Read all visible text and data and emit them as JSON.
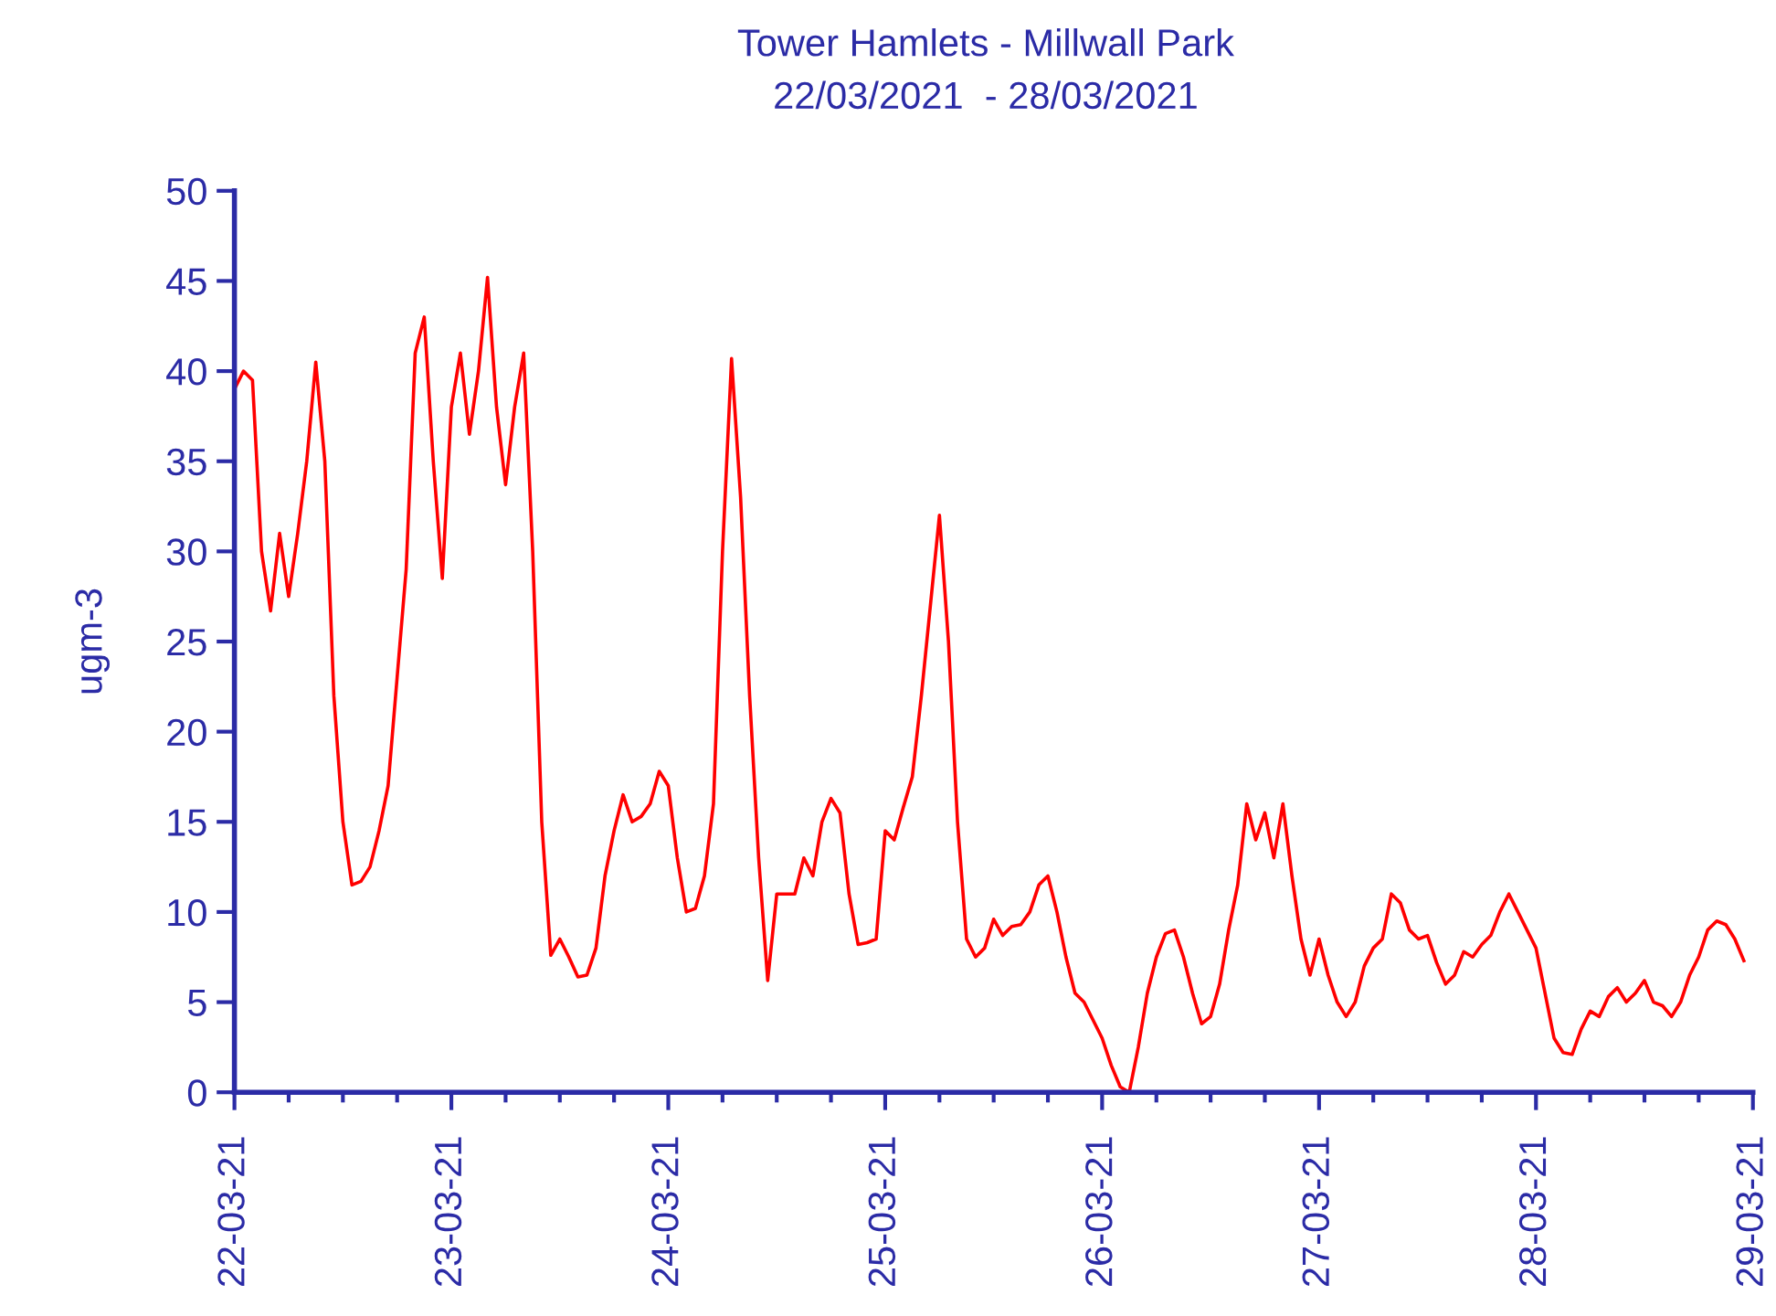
{
  "chart_data": {
    "type": "line",
    "title": "Tower Hamlets - Millwall Park",
    "subtitle": "22/03/2021  - 28/03/2021",
    "ylabel": "ugm-3",
    "x": [
      "2021-03-22T00:00",
      "2021-03-22T01:00",
      "2021-03-22T02:00",
      "2021-03-22T03:00",
      "2021-03-22T04:00",
      "2021-03-22T05:00",
      "2021-03-22T06:00",
      "2021-03-22T07:00",
      "2021-03-22T08:00",
      "2021-03-22T09:00",
      "2021-03-22T10:00",
      "2021-03-22T11:00",
      "2021-03-22T12:00",
      "2021-03-22T13:00",
      "2021-03-22T14:00",
      "2021-03-22T15:00",
      "2021-03-22T16:00",
      "2021-03-22T17:00",
      "2021-03-22T18:00",
      "2021-03-22T19:00",
      "2021-03-22T20:00",
      "2021-03-22T21:00",
      "2021-03-22T22:00",
      "2021-03-22T23:00",
      "2021-03-23T00:00",
      "2021-03-23T01:00",
      "2021-03-23T02:00",
      "2021-03-23T03:00",
      "2021-03-23T04:00",
      "2021-03-23T05:00",
      "2021-03-23T06:00",
      "2021-03-23T07:00",
      "2021-03-23T08:00",
      "2021-03-23T09:00",
      "2021-03-23T10:00",
      "2021-03-23T11:00",
      "2021-03-23T12:00",
      "2021-03-23T13:00",
      "2021-03-23T14:00",
      "2021-03-23T15:00",
      "2021-03-23T16:00",
      "2021-03-23T17:00",
      "2021-03-23T18:00",
      "2021-03-23T19:00",
      "2021-03-23T20:00",
      "2021-03-23T21:00",
      "2021-03-23T22:00",
      "2021-03-23T23:00",
      "2021-03-24T00:00",
      "2021-03-24T01:00",
      "2021-03-24T02:00",
      "2021-03-24T03:00",
      "2021-03-24T04:00",
      "2021-03-24T05:00",
      "2021-03-24T06:00",
      "2021-03-24T07:00",
      "2021-03-24T08:00",
      "2021-03-24T09:00",
      "2021-03-24T10:00",
      "2021-03-24T11:00",
      "2021-03-24T12:00",
      "2021-03-24T13:00",
      "2021-03-24T14:00",
      "2021-03-24T15:00",
      "2021-03-24T16:00",
      "2021-03-24T17:00",
      "2021-03-24T18:00",
      "2021-03-24T19:00",
      "2021-03-24T20:00",
      "2021-03-24T21:00",
      "2021-03-24T22:00",
      "2021-03-24T23:00",
      "2021-03-25T00:00",
      "2021-03-25T01:00",
      "2021-03-25T02:00",
      "2021-03-25T03:00",
      "2021-03-25T04:00",
      "2021-03-25T05:00",
      "2021-03-25T06:00",
      "2021-03-25T07:00",
      "2021-03-25T08:00",
      "2021-03-25T09:00",
      "2021-03-25T10:00",
      "2021-03-25T11:00",
      "2021-03-25T12:00",
      "2021-03-25T13:00",
      "2021-03-25T14:00",
      "2021-03-25T15:00",
      "2021-03-25T16:00",
      "2021-03-25T17:00",
      "2021-03-25T18:00",
      "2021-03-25T19:00",
      "2021-03-25T20:00",
      "2021-03-25T21:00",
      "2021-03-25T22:00",
      "2021-03-25T23:00",
      "2021-03-26T00:00",
      "2021-03-26T01:00",
      "2021-03-26T02:00",
      "2021-03-26T03:00",
      "2021-03-26T04:00",
      "2021-03-26T05:00",
      "2021-03-26T06:00",
      "2021-03-26T07:00",
      "2021-03-26T08:00",
      "2021-03-26T09:00",
      "2021-03-26T10:00",
      "2021-03-26T11:00",
      "2021-03-26T12:00",
      "2021-03-26T13:00",
      "2021-03-26T14:00",
      "2021-03-26T15:00",
      "2021-03-26T16:00",
      "2021-03-26T17:00",
      "2021-03-26T18:00",
      "2021-03-26T19:00",
      "2021-03-26T20:00",
      "2021-03-26T21:00",
      "2021-03-26T22:00",
      "2021-03-26T23:00",
      "2021-03-27T00:00",
      "2021-03-27T01:00",
      "2021-03-27T02:00",
      "2021-03-27T03:00",
      "2021-03-27T04:00",
      "2021-03-27T05:00",
      "2021-03-27T06:00",
      "2021-03-27T07:00",
      "2021-03-27T08:00",
      "2021-03-27T09:00",
      "2021-03-27T10:00",
      "2021-03-27T11:00",
      "2021-03-27T12:00",
      "2021-03-27T13:00",
      "2021-03-27T14:00",
      "2021-03-27T15:00",
      "2021-03-27T16:00",
      "2021-03-27T17:00",
      "2021-03-27T18:00",
      "2021-03-27T19:00",
      "2021-03-27T20:00",
      "2021-03-27T21:00",
      "2021-03-27T22:00",
      "2021-03-27T23:00",
      "2021-03-28T00:00",
      "2021-03-28T01:00",
      "2021-03-28T02:00",
      "2021-03-28T03:00",
      "2021-03-28T04:00",
      "2021-03-28T05:00",
      "2021-03-28T06:00",
      "2021-03-28T07:00",
      "2021-03-28T08:00",
      "2021-03-28T09:00",
      "2021-03-28T10:00",
      "2021-03-28T11:00",
      "2021-03-28T12:00",
      "2021-03-28T13:00",
      "2021-03-28T14:00",
      "2021-03-28T15:00",
      "2021-03-28T16:00",
      "2021-03-28T17:00",
      "2021-03-28T18:00",
      "2021-03-28T19:00",
      "2021-03-28T20:00",
      "2021-03-28T21:00",
      "2021-03-28T22:00",
      "2021-03-28T23:00"
    ],
    "series": [
      {
        "color": "#ff0000",
        "values": [
          39,
          40,
          39.5,
          30,
          26.7,
          31,
          27.5,
          31,
          35,
          40.5,
          35,
          22,
          15,
          11.5,
          11.7,
          12.5,
          14.5,
          17,
          23,
          29,
          41,
          43,
          35,
          28.5,
          38,
          41,
          36.5,
          40,
          45.2,
          38,
          33.7,
          38,
          41,
          30,
          15,
          7.6,
          8.5,
          7.5,
          6.4,
          6.5,
          8,
          12,
          14.5,
          16.5,
          15,
          15.3,
          16,
          17.8,
          17,
          13,
          10,
          10.2,
          12,
          16,
          30,
          40.7,
          33,
          22,
          13,
          6.2,
          11,
          11,
          11,
          13,
          12,
          15,
          16.3,
          15.5,
          11,
          8.2,
          8.3,
          8.5,
          14.5,
          14,
          15.8,
          17.5,
          22,
          27,
          32,
          25,
          15,
          8.5,
          7.5,
          8,
          9.6,
          8.7,
          9.2,
          9.3,
          10,
          11.5,
          12,
          10,
          7.5,
          5.5,
          5,
          4,
          3,
          1.5,
          0.3,
          0,
          2.5,
          5.5,
          7.5,
          8.8,
          9,
          7.5,
          5.5,
          3.8,
          4.2,
          6,
          9,
          11.5,
          16,
          14,
          15.5,
          13,
          16,
          12,
          8.5,
          6.5,
          8.5,
          6.5,
          5,
          4.2,
          5,
          7,
          8,
          8.5,
          11,
          10.5,
          9,
          8.5,
          8.7,
          7.2,
          6,
          6.5,
          7.8,
          7.5,
          8.2,
          8.7,
          10,
          11,
          10,
          9,
          8,
          5.5,
          3,
          2.2,
          2.1,
          3.5,
          4.5,
          4.2,
          5.3,
          5.8,
          5,
          5.5,
          6.2,
          5,
          4.8,
          4.2,
          5,
          6.5,
          7.5,
          9,
          9.5,
          9.3,
          8.5,
          7.3
        ]
      }
    ],
    "xlim": [
      "2021-03-22T00:00",
      "2021-03-29T00:00"
    ],
    "xticks": [
      {
        "value": "2021-03-22T00:00",
        "label": "22-03-21"
      },
      {
        "value": "2021-03-22T06:00",
        "label": null
      },
      {
        "value": "2021-03-22T12:00",
        "label": null
      },
      {
        "value": "2021-03-22T18:00",
        "label": null
      },
      {
        "value": "2021-03-23T00:00",
        "label": "23-03-21"
      },
      {
        "value": "2021-03-23T06:00",
        "label": null
      },
      {
        "value": "2021-03-23T12:00",
        "label": null
      },
      {
        "value": "2021-03-23T18:00",
        "label": null
      },
      {
        "value": "2021-03-24T00:00",
        "label": "24-03-21"
      },
      {
        "value": "2021-03-24T06:00",
        "label": null
      },
      {
        "value": "2021-03-24T12:00",
        "label": null
      },
      {
        "value": "2021-03-24T18:00",
        "label": null
      },
      {
        "value": "2021-03-25T00:00",
        "label": "25-03-21"
      },
      {
        "value": "2021-03-25T06:00",
        "label": null
      },
      {
        "value": "2021-03-25T12:00",
        "label": null
      },
      {
        "value": "2021-03-25T18:00",
        "label": null
      },
      {
        "value": "2021-03-26T00:00",
        "label": "26-03-21"
      },
      {
        "value": "2021-03-26T06:00",
        "label": null
      },
      {
        "value": "2021-03-26T12:00",
        "label": null
      },
      {
        "value": "2021-03-26T18:00",
        "label": null
      },
      {
        "value": "2021-03-27T00:00",
        "label": "27-03-21"
      },
      {
        "value": "2021-03-27T06:00",
        "label": null
      },
      {
        "value": "2021-03-27T12:00",
        "label": null
      },
      {
        "value": "2021-03-27T18:00",
        "label": null
      },
      {
        "value": "2021-03-28T00:00",
        "label": "28-03-21"
      },
      {
        "value": "2021-03-28T06:00",
        "label": null
      },
      {
        "value": "2021-03-28T12:00",
        "label": null
      },
      {
        "value": "2021-03-28T18:00",
        "label": null
      },
      {
        "value": "2021-03-29T00:00",
        "label": "29-03-21"
      }
    ],
    "ylim": [
      0,
      50
    ],
    "yticks": [
      0,
      5,
      10,
      15,
      20,
      25,
      30,
      35,
      40,
      45,
      50
    ],
    "grid": false,
    "legend": false,
    "marker": "none",
    "line_style": "solid"
  }
}
